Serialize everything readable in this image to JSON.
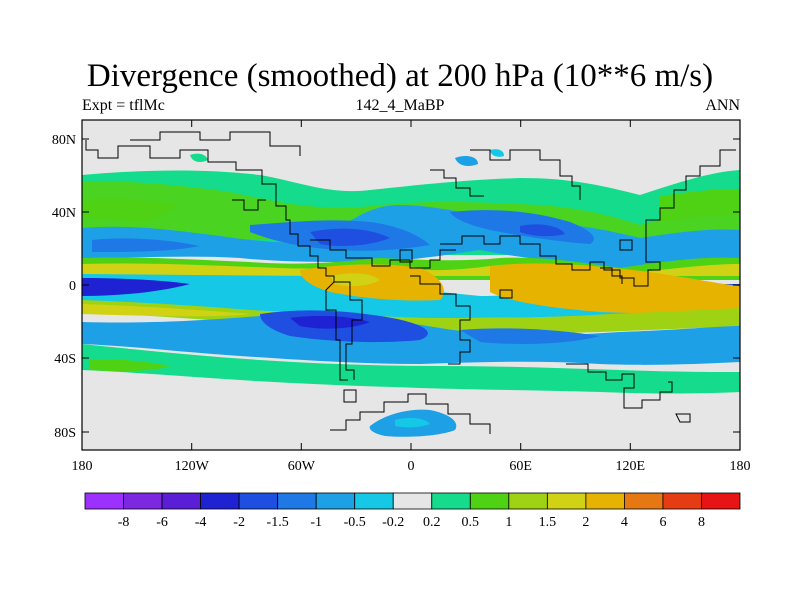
{
  "title": "Divergence (smoothed) at 200 hPa (10**6 m/s)",
  "subtitle_left": "Expt = tflMc",
  "subtitle_center": "142_4_MaBP",
  "subtitle_right": "ANN",
  "axes": {
    "x_ticks": [
      "180",
      "120W",
      "60W",
      "0",
      "60E",
      "120E",
      "180"
    ],
    "y_ticks": [
      "80N",
      "40N",
      "0",
      "40S",
      "80S"
    ]
  },
  "colorbar": {
    "labels": [
      "-8",
      "-6",
      "-4",
      "-2",
      "-1.5",
      "-1",
      "-0.5",
      "-0.2",
      "0.2",
      "0.5",
      "1",
      "1.5",
      "2",
      "4",
      "6",
      "8"
    ],
    "colors": [
      "#9b30ff",
      "#7b28e0",
      "#5a1ed6",
      "#1e22d2",
      "#1e4fe0",
      "#1e78e6",
      "#1ea0e6",
      "#14c8e6",
      "#e6e6e6",
      "#14dc8c",
      "#50d214",
      "#a0d214",
      "#d2d214",
      "#e6b400",
      "#e67814",
      "#e63c14",
      "#e61414"
    ]
  }
}
